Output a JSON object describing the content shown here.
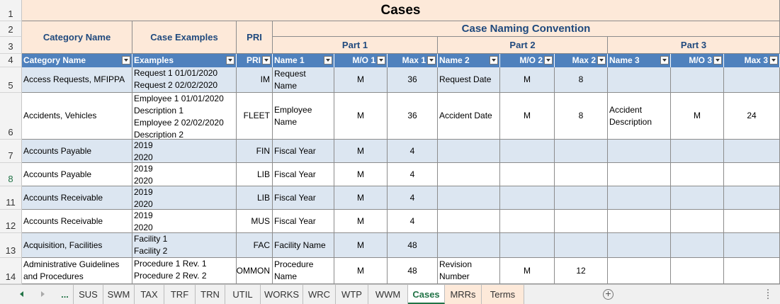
{
  "sheet": {
    "title": "Cases",
    "header": {
      "category_name": "Category Name",
      "case_examples": "Case Examples",
      "pri": "PRI",
      "convention": "Case Naming Convention",
      "part1": "Part 1",
      "part2": "Part 2",
      "part3": "Part 3"
    },
    "filter_headers": [
      "Category Name",
      "Examples",
      "PRI",
      "Name 1",
      "M/O 1",
      "Max 1",
      "Name 2",
      "M/O 2",
      "Max 2",
      "Name 3",
      "M/O 3",
      "Max 3"
    ],
    "row_numbers": [
      "1",
      "2",
      "3",
      "4",
      "5",
      "6",
      "7",
      "8",
      "11",
      "12",
      "13",
      "14"
    ],
    "rows": [
      {
        "cat": "Access Requests, MFIPPA",
        "ex": [
          "Request 1 01/01/2020",
          "Request 2 02/02/2020"
        ],
        "pri": "IM",
        "n1": [
          "Request",
          "Name"
        ],
        "mo1": "M",
        "max1": "36",
        "n2": [
          "Request Date"
        ],
        "mo2": "M",
        "max2": "8",
        "n3": [],
        "mo3": "",
        "max3": ""
      },
      {
        "cat": "Accidents, Vehicles",
        "ex": [
          "Employee 1 01/01/2020",
          "Description 1",
          "Employee 2  02/02/2020",
          "Description 2"
        ],
        "pri": "FLEET",
        "n1": [
          "Employee",
          "Name"
        ],
        "mo1": "M",
        "max1": "36",
        "n2": [
          "Accident Date"
        ],
        "mo2": "M",
        "max2": "8",
        "n3": [
          "Accident",
          "Description"
        ],
        "mo3": "M",
        "max3": "24"
      },
      {
        "cat": "Accounts Payable",
        "ex": [
          "2019",
          "2020"
        ],
        "pri": "FIN",
        "n1": [
          "Fiscal Year"
        ],
        "mo1": "M",
        "max1": "4",
        "n2": [],
        "mo2": "",
        "max2": "",
        "n3": [],
        "mo3": "",
        "max3": ""
      },
      {
        "cat": "Accounts Payable",
        "ex": [
          "2019",
          "2020"
        ],
        "pri": "LIB",
        "n1": [
          "Fiscal Year"
        ],
        "mo1": "M",
        "max1": "4",
        "n2": [],
        "mo2": "",
        "max2": "",
        "n3": [],
        "mo3": "",
        "max3": ""
      },
      {
        "cat": "Accounts Receivable",
        "ex": [
          "2019",
          "2020"
        ],
        "pri": "LIB",
        "n1": [
          "Fiscal Year"
        ],
        "mo1": "M",
        "max1": "4",
        "n2": [],
        "mo2": "",
        "max2": "",
        "n3": [],
        "mo3": "",
        "max3": ""
      },
      {
        "cat": "Accounts Receivable",
        "ex": [
          "2019",
          "2020"
        ],
        "pri": "MUS",
        "n1": [
          "Fiscal Year"
        ],
        "mo1": "M",
        "max1": "4",
        "n2": [],
        "mo2": "",
        "max2": "",
        "n3": [],
        "mo3": "",
        "max3": ""
      },
      {
        "cat": "Acquisition, Facilities",
        "ex": [
          "Facility 1",
          "Facility 2"
        ],
        "pri": "FAC",
        "n1": [
          "Facility Name"
        ],
        "mo1": "M",
        "max1": "48",
        "n2": [],
        "mo2": "",
        "max2": "",
        "n3": [],
        "mo3": "",
        "max3": ""
      },
      {
        "cat": [
          "Administrative Guidelines",
          "and Procedures"
        ],
        "ex": [
          "Procedure 1 Rev. 1",
          "Procedure 2 Rev. 2"
        ],
        "pri": "COMMON",
        "n1": [
          "Procedure",
          "Name"
        ],
        "mo1": "M",
        "max1": "48",
        "n2": [
          "Revision",
          "Number"
        ],
        "mo2": "M",
        "max2": "12",
        "n3": [],
        "mo3": "",
        "max3": ""
      }
    ]
  },
  "tabs": {
    "ellipsis": "...",
    "items": [
      "SUS",
      "SWM",
      "TAX",
      "TRF",
      "TRN",
      "UTIL",
      "WORKS",
      "WRC",
      "WTP",
      "WWM",
      "Cases",
      "MRRs",
      "Terms"
    ],
    "active": "Cases",
    "add_icon": "plus-circle-icon"
  },
  "colors": {
    "header_peach": "#fde9d9",
    "filter_blue": "#4f81bd",
    "band_light": "#dce6f1",
    "accent_green": "#217346"
  }
}
